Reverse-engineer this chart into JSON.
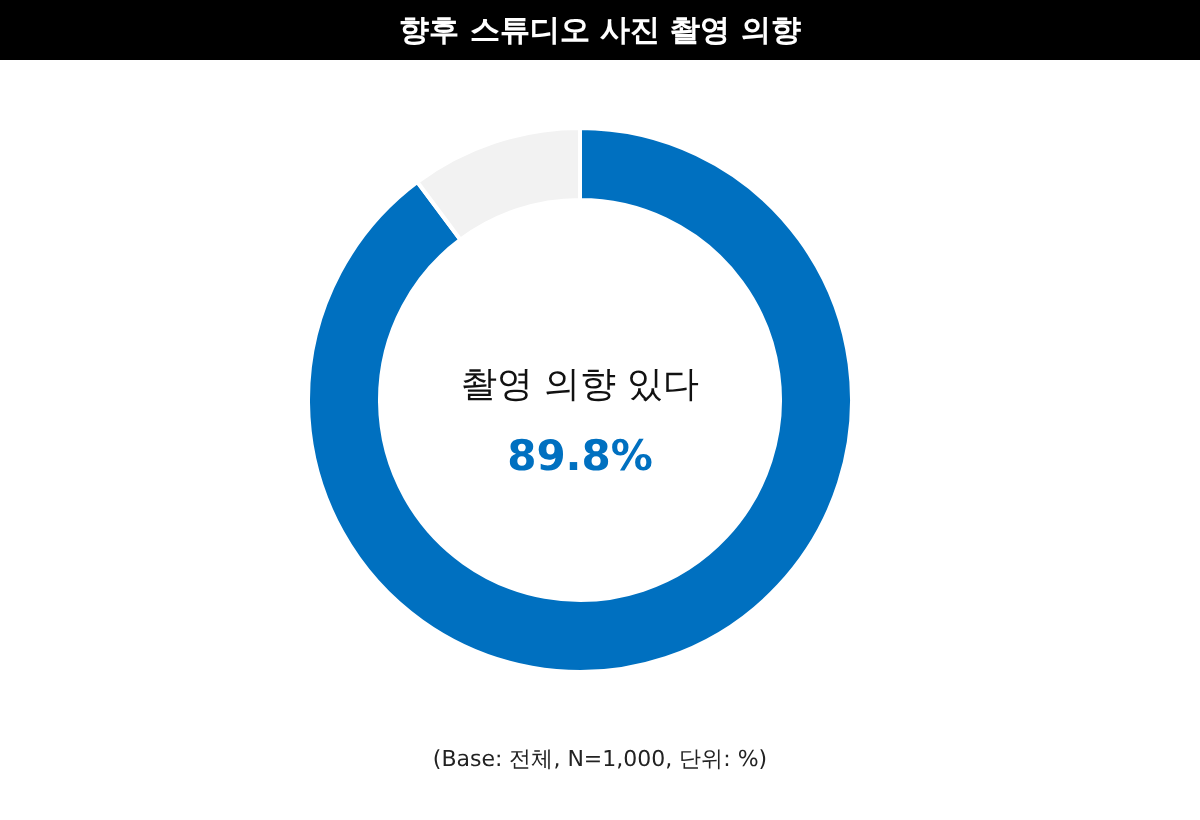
{
  "chart_data": {
    "type": "donut",
    "title": "향후 스튜디오 사진 촬영 의향",
    "categories": [
      "촬영 의향 있다",
      null
    ],
    "values": [
      89.8,
      10.2
    ],
    "colors": [
      "#0070c0",
      "#f2f2f2"
    ],
    "value_labels": [
      "89.8%",
      null
    ],
    "annotations": [
      "(Base: 전체, N=1,000, 단위: %)"
    ]
  }
}
